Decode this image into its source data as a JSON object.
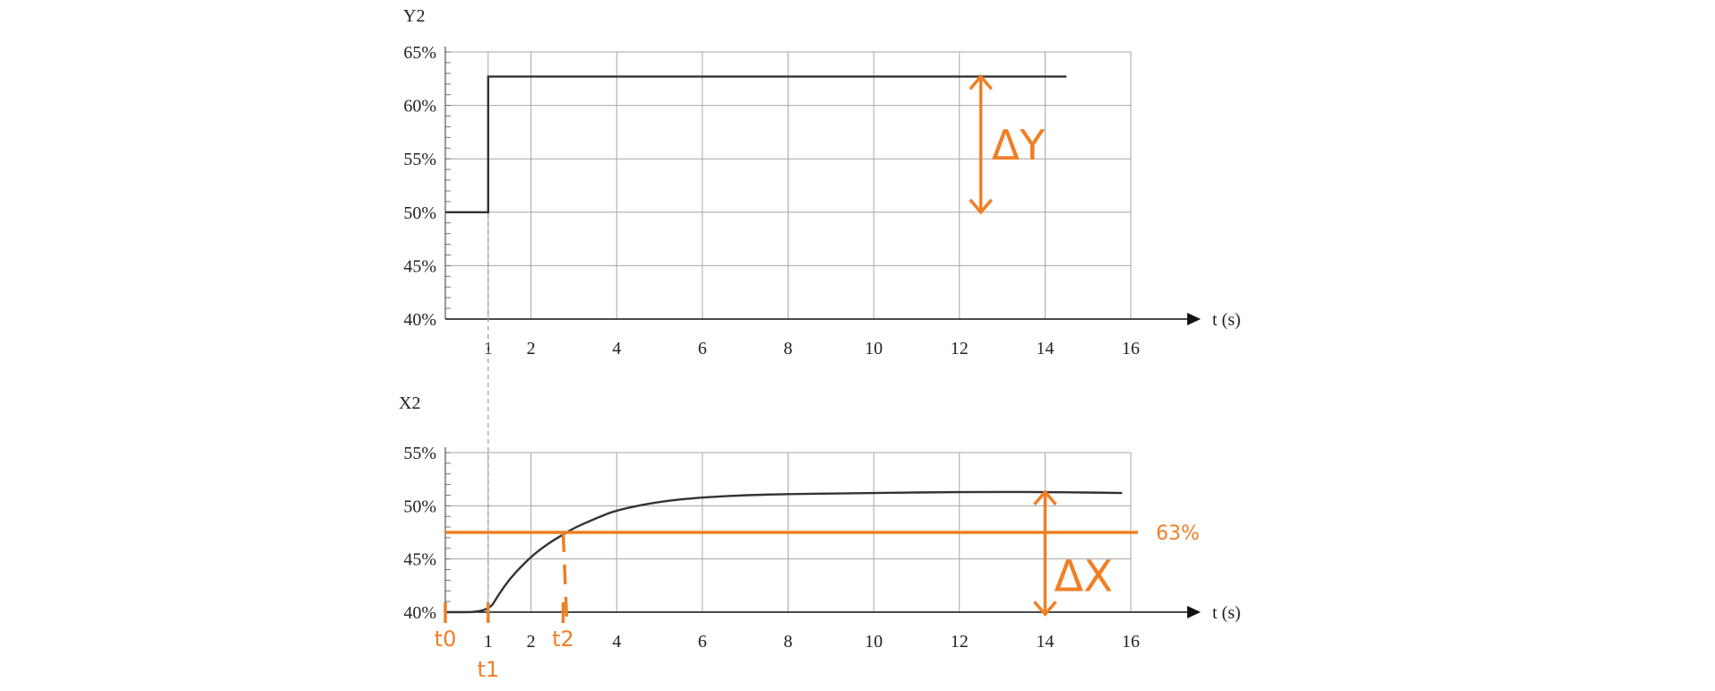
{
  "colors": {
    "curve": "#333333",
    "grid": "#a6a6a6",
    "annotation": "#f07f24",
    "axis": "#111111"
  },
  "chart_data": [
    {
      "type": "line",
      "ylabel": "Y2",
      "xlabel": "t (s)",
      "xlim": [
        0,
        16
      ],
      "ylim": [
        40,
        65
      ],
      "grid": true,
      "x_ticks": [
        {
          "v": 1,
          "label": "1"
        },
        {
          "v": 2,
          "label": "2"
        },
        {
          "v": 4,
          "label": "4"
        },
        {
          "v": 6,
          "label": "6"
        },
        {
          "v": 8,
          "label": "8"
        },
        {
          "v": 10,
          "label": "10"
        },
        {
          "v": 12,
          "label": "12"
        },
        {
          "v": 14,
          "label": "14"
        },
        {
          "v": 16,
          "label": "16"
        }
      ],
      "y_ticks": [
        {
          "v": 40,
          "label": "40%"
        },
        {
          "v": 45,
          "label": "45%"
        },
        {
          "v": 50,
          "label": "50%"
        },
        {
          "v": 55,
          "label": "55%"
        },
        {
          "v": 60,
          "label": "60%"
        },
        {
          "v": 65,
          "label": "65%"
        }
      ],
      "series": [
        {
          "x": [
            0,
            1,
            1,
            14.5
          ],
          "y": [
            50,
            50,
            62.7,
            62.7
          ]
        }
      ],
      "annotations": [
        {
          "type": "double-arrow",
          "label": "ΔY",
          "x": 12.5,
          "y_from": 50,
          "y_to": 62.7
        }
      ]
    },
    {
      "type": "line",
      "ylabel": "X2",
      "xlabel": "t (s)",
      "xlim": [
        0,
        16
      ],
      "ylim": [
        40,
        55
      ],
      "grid": true,
      "x_ticks": [
        {
          "v": 1,
          "label": "1"
        },
        {
          "v": 2,
          "label": "2"
        },
        {
          "v": 4,
          "label": "4"
        },
        {
          "v": 6,
          "label": "6"
        },
        {
          "v": 8,
          "label": "8"
        },
        {
          "v": 10,
          "label": "10"
        },
        {
          "v": 12,
          "label": "12"
        },
        {
          "v": 14,
          "label": "14"
        },
        {
          "v": 16,
          "label": "16"
        }
      ],
      "y_ticks": [
        {
          "v": 40,
          "label": "40%"
        },
        {
          "v": 45,
          "label": "45%"
        },
        {
          "v": 50,
          "label": "50%"
        },
        {
          "v": 55,
          "label": "55%"
        }
      ],
      "series": [
        {
          "x": [
            0,
            1,
            1.25,
            1.5,
            1.75,
            2,
            2.25,
            2.5,
            2.75,
            3,
            3.5,
            4,
            5,
            6,
            7,
            8,
            10,
            12,
            14,
            15.8
          ],
          "y": [
            40,
            40,
            41.7,
            43.1,
            44.2,
            45.2,
            46.0,
            46.7,
            47.3,
            47.9,
            48.8,
            49.6,
            50.4,
            50.8,
            51.0,
            51.1,
            51.2,
            51.3,
            51.3,
            51.2
          ]
        }
      ],
      "annotations": [
        {
          "type": "hline",
          "label": "63%",
          "y": 47.5,
          "x_from": 0,
          "x_to": 16
        },
        {
          "type": "double-arrow",
          "label": "ΔX",
          "x": 14,
          "y_from": 39.8,
          "y_to": 51.3
        },
        {
          "type": "dashed-drop",
          "x": 2.75,
          "y_from": 47.5,
          "y_to": 40
        },
        {
          "type": "time-marker",
          "label": "t0",
          "x": 0
        },
        {
          "type": "time-marker",
          "label": "t1",
          "x": 1
        },
        {
          "type": "time-marker",
          "label": "t2",
          "x": 2.75
        }
      ]
    }
  ]
}
